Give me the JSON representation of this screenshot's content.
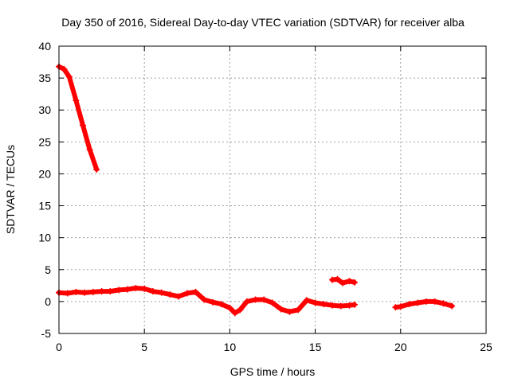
{
  "chart_data": {
    "type": "scatter",
    "title": "Day 350 of 2016, Sidereal Day-to-day VTEC variation (SDTVAR) for receiver alba",
    "xlabel": "GPS time / hours",
    "ylabel": "SDTVAR / TECUs",
    "xlim": [
      0,
      25
    ],
    "ylim": [
      -5,
      40
    ],
    "xticks": [
      "0",
      "5",
      "10",
      "15",
      "20",
      "25"
    ],
    "yticks": [
      "-5",
      "0",
      "5",
      "10",
      "15",
      "20",
      "25",
      "30",
      "35",
      "40"
    ],
    "grid": true,
    "series_color": "#ff0000",
    "series": [
      {
        "name": "segment-1",
        "points": [
          [
            0.0,
            36.8
          ],
          [
            0.3,
            36.4
          ],
          [
            0.6,
            35.2
          ],
          [
            1.0,
            31.5
          ],
          [
            1.4,
            27.6
          ],
          [
            1.8,
            23.8
          ],
          [
            2.2,
            20.7
          ]
        ]
      },
      {
        "name": "segment-2",
        "points": [
          [
            0.0,
            1.4
          ],
          [
            0.5,
            1.3
          ],
          [
            1.0,
            1.5
          ],
          [
            1.5,
            1.4
          ],
          [
            2.0,
            1.5
          ],
          [
            2.5,
            1.6
          ],
          [
            3.0,
            1.6
          ],
          [
            3.5,
            1.8
          ],
          [
            4.0,
            1.9
          ],
          [
            4.5,
            2.1
          ],
          [
            5.0,
            2.0
          ],
          [
            5.5,
            1.6
          ],
          [
            6.0,
            1.4
          ],
          [
            6.5,
            1.1
          ],
          [
            7.0,
            0.8
          ],
          [
            7.5,
            1.3
          ],
          [
            8.0,
            1.5
          ],
          [
            8.5,
            0.3
          ],
          [
            9.0,
            -0.1
          ],
          [
            9.5,
            -0.4
          ],
          [
            10.0,
            -1.0
          ],
          [
            10.3,
            -1.8
          ],
          [
            10.6,
            -1.3
          ],
          [
            11.0,
            0.0
          ],
          [
            11.5,
            0.3
          ],
          [
            12.0,
            0.3
          ],
          [
            12.5,
            -0.2
          ],
          [
            13.0,
            -1.2
          ],
          [
            13.5,
            -1.6
          ],
          [
            14.0,
            -1.3
          ],
          [
            14.5,
            0.2
          ],
          [
            15.0,
            -0.2
          ],
          [
            15.5,
            -0.4
          ],
          [
            16.0,
            -0.6
          ],
          [
            16.5,
            -0.7
          ],
          [
            17.0,
            -0.6
          ],
          [
            17.3,
            -0.5
          ]
        ]
      },
      {
        "name": "segment-3",
        "points": [
          [
            16.0,
            3.4
          ],
          [
            16.3,
            3.5
          ],
          [
            16.6,
            2.9
          ],
          [
            17.0,
            3.2
          ],
          [
            17.3,
            3.0
          ]
        ]
      },
      {
        "name": "segment-4",
        "points": [
          [
            19.7,
            -0.9
          ],
          [
            20.0,
            -0.8
          ],
          [
            20.5,
            -0.4
          ],
          [
            21.0,
            -0.2
          ],
          [
            21.5,
            0.0
          ],
          [
            22.0,
            0.0
          ],
          [
            22.5,
            -0.3
          ],
          [
            23.0,
            -0.7
          ]
        ]
      }
    ]
  }
}
